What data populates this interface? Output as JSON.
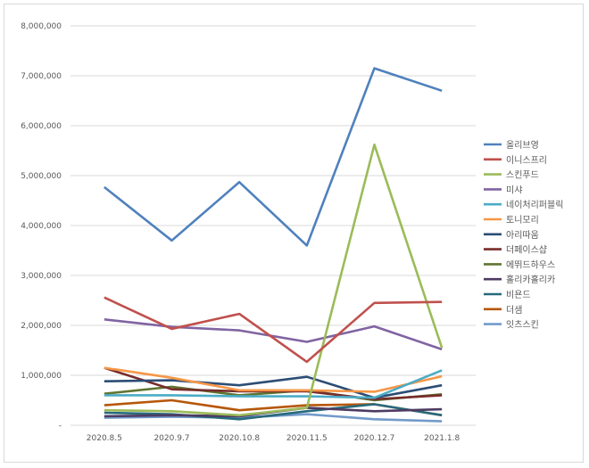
{
  "chart_data": {
    "type": "line",
    "title": "",
    "xlabel": "",
    "ylabel": "",
    "categories": [
      "2020.8.5",
      "2020.9.7",
      "2020.10.8",
      "2020.11.5",
      "2020.12.7",
      "2021.1.8"
    ],
    "ylim": [
      0,
      8000000
    ],
    "yticks": [
      0,
      1000000,
      2000000,
      3000000,
      4000000,
      5000000,
      6000000,
      7000000,
      8000000
    ],
    "ytick_labels": [
      "-",
      "1,000,000",
      "2,000,000",
      "3,000,000",
      "4,000,000",
      "5,000,000",
      "6,000,000",
      "7,000,000",
      "8,000,000"
    ],
    "grid": true,
    "legend_position": "right",
    "series": [
      {
        "name": "올리브영",
        "color": "#4F81BD",
        "values": [
          4770000,
          3700000,
          4870000,
          3600000,
          7150000,
          6700000
        ]
      },
      {
        "name": "이니스프리",
        "color": "#C0504D",
        "values": [
          2560000,
          1930000,
          2230000,
          1270000,
          2450000,
          2470000
        ]
      },
      {
        "name": "스킨푸드",
        "color": "#9BBB59",
        "values": [
          300000,
          280000,
          200000,
          350000,
          5620000,
          1550000
        ]
      },
      {
        "name": "미샤",
        "color": "#8064A2",
        "values": [
          2120000,
          1970000,
          1900000,
          1670000,
          1980000,
          1520000
        ]
      },
      {
        "name": "네이처리퍼블릭",
        "color": "#4BACC6",
        "values": [
          600000,
          600000,
          580000,
          580000,
          550000,
          1100000
        ]
      },
      {
        "name": "토니모리",
        "color": "#F79646",
        "values": [
          1150000,
          950000,
          700000,
          700000,
          670000,
          980000
        ]
      },
      {
        "name": "아리따움",
        "color": "#2C4D75",
        "values": [
          880000,
          900000,
          800000,
          970000,
          550000,
          800000
        ]
      },
      {
        "name": "더페이스샵",
        "color": "#772C2A",
        "values": [
          1150000,
          720000,
          680000,
          680000,
          520000,
          600000
        ]
      },
      {
        "name": "에뛰드하우스",
        "color": "#5F7530",
        "values": [
          630000,
          770000,
          600000,
          700000,
          500000,
          620000
        ]
      },
      {
        "name": "홀리카홀리카",
        "color": "#4D3B62",
        "values": [
          180000,
          200000,
          180000,
          350000,
          280000,
          320000
        ]
      },
      {
        "name": "비욘드",
        "color": "#276A7C",
        "values": [
          250000,
          220000,
          120000,
          280000,
          420000,
          200000
        ]
      },
      {
        "name": "더샘",
        "color": "#B65708",
        "values": [
          400000,
          500000,
          300000,
          400000,
          420000,
          200000
        ]
      },
      {
        "name": "잇츠스킨",
        "color": "#729ACA",
        "values": [
          150000,
          170000,
          150000,
          220000,
          120000,
          80000
        ]
      }
    ]
  }
}
